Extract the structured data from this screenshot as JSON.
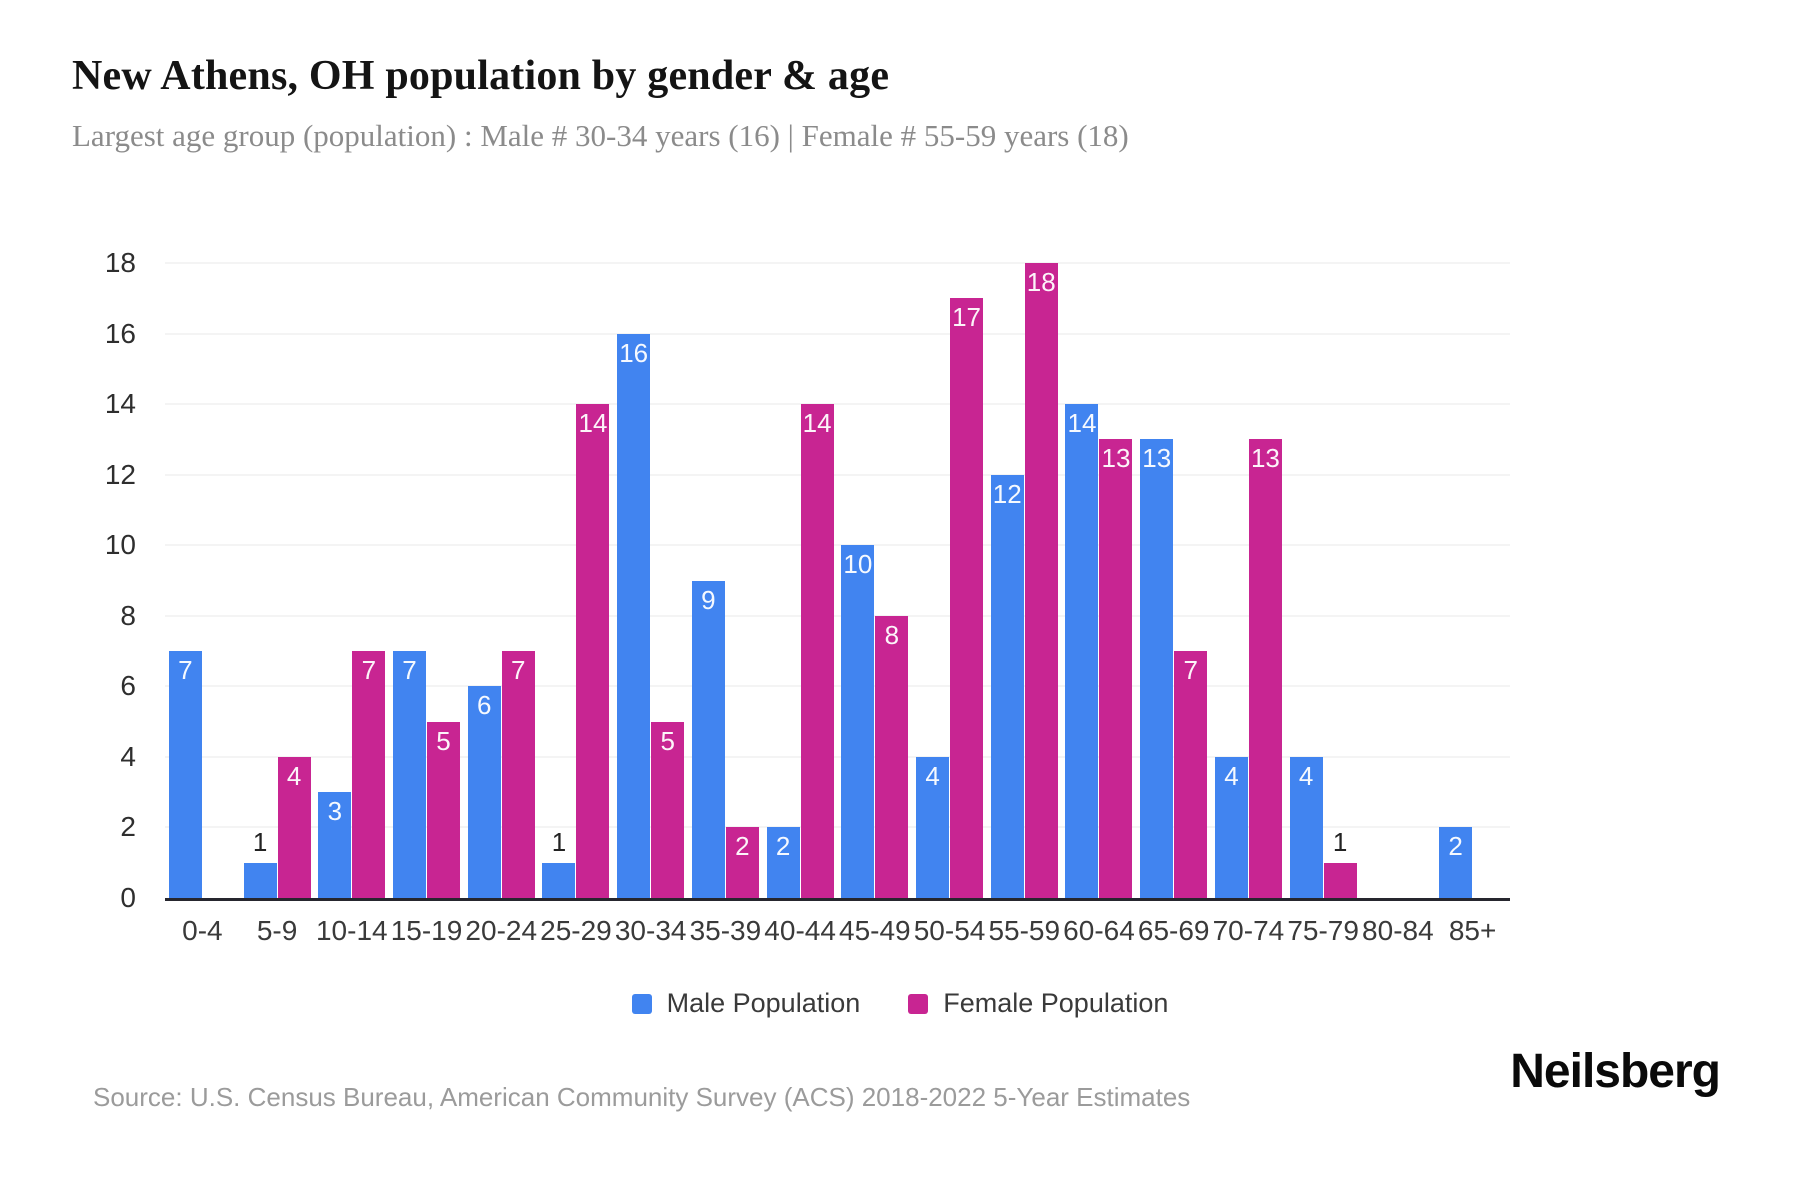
{
  "header": {
    "title": "New Athens, OH population by gender & age",
    "subtitle": "Largest age group (population) : Male # 30-34 years (16) | Female # 55-59 years (18)"
  },
  "chart_data": {
    "type": "bar",
    "categories": [
      "0-4",
      "5-9",
      "10-14",
      "15-19",
      "20-24",
      "25-29",
      "30-34",
      "35-39",
      "40-44",
      "45-49",
      "50-54",
      "55-59",
      "60-64",
      "65-69",
      "70-74",
      "75-79",
      "80-84",
      "85+"
    ],
    "series": [
      {
        "name": "Male Population",
        "color": "#4184f0",
        "values": [
          7,
          1,
          3,
          7,
          6,
          1,
          16,
          9,
          2,
          10,
          4,
          12,
          14,
          13,
          4,
          4,
          0,
          2
        ]
      },
      {
        "name": "Female Population",
        "color": "#c82592",
        "values": [
          0,
          4,
          7,
          5,
          7,
          14,
          5,
          2,
          14,
          8,
          17,
          18,
          13,
          7,
          13,
          1,
          0,
          0
        ]
      }
    ],
    "title": "New Athens, OH population by gender & age",
    "xlabel": "",
    "ylabel": "",
    "ylim": [
      0,
      18
    ],
    "yticks": [
      0,
      2,
      4,
      6,
      8,
      10,
      12,
      14,
      16,
      18
    ],
    "grid": true,
    "legend_position": "bottom"
  },
  "footer": {
    "source": "Source: U.S. Census Bureau, American Community Survey (ACS) 2018-2022 5-Year Estimates",
    "brand": "Neilsberg"
  }
}
